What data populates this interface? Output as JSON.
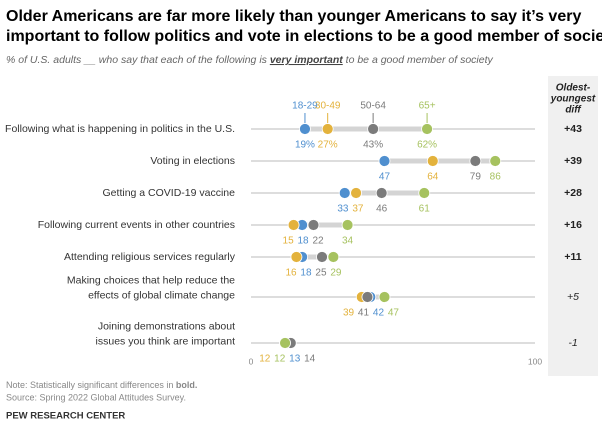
{
  "chart_data": {
    "type": "dot",
    "title": [
      "Older Americans are far more likely than younger Americans to say it’s very",
      "important to follow politics and vote in elections to be a good member of society"
    ],
    "subtitle_start": "% of U.S. adults __ who say that each of the following is ",
    "subtitle_emphasis": "very important",
    "subtitle_end": " to be a good member of society",
    "categories": [
      [
        "Following what is happening in politics in the U.S."
      ],
      [
        "Voting in elections"
      ],
      [
        "Getting a COVID-19 vaccine"
      ],
      [
        "Following current events in other countries"
      ],
      [
        "Attending religious services regularly"
      ],
      [
        "Making choices that help reduce the",
        "effects of global climate change"
      ],
      [
        "Joining demonstrations about",
        "issues you think are important"
      ]
    ],
    "series": [
      {
        "name": "18-29",
        "color": "#4f8fcf",
        "values": [
          19,
          47,
          33,
          18,
          18,
          42,
          13
        ],
        "value_labels": [
          "19%",
          "47",
          "33",
          "18",
          "18",
          "42",
          "13"
        ]
      },
      {
        "name": "30-49",
        "color": "#e3b23c",
        "values": [
          27,
          64,
          37,
          15,
          16,
          39,
          12
        ],
        "value_labels": [
          "27%",
          "64",
          "37",
          "15",
          "16",
          "39",
          "12"
        ]
      },
      {
        "name": "50-64",
        "color": "#7b7b7b",
        "values": [
          43,
          79,
          46,
          22,
          25,
          41,
          14
        ],
        "value_labels": [
          "43%",
          "79",
          "46",
          "22",
          "25",
          "41",
          "14"
        ]
      },
      {
        "name": "65+",
        "color": "#a6c25f",
        "values": [
          62,
          86,
          61,
          34,
          29,
          47,
          12
        ],
        "value_labels": [
          "62%",
          "86",
          "61",
          "34",
          "29",
          "47",
          "12"
        ]
      }
    ],
    "diff_header": [
      "Oldest-",
      "youngest",
      "diff"
    ],
    "diff": [
      43,
      39,
      28,
      16,
      11,
      5,
      -1
    ],
    "diff_labels": [
      "+43",
      "+39",
      "+28",
      "+16",
      "+11",
      "+5",
      "-1"
    ],
    "significant": [
      true,
      true,
      true,
      true,
      true,
      false,
      false
    ],
    "xlim": [
      0,
      100
    ],
    "xticks": [
      0,
      100
    ],
    "note_start": "Note: Statistically significant differences in ",
    "note_bold": "bold.",
    "source": "Source: Spring 2022 Global Attitudes Survey.",
    "footer": "PEW RESEARCH CENTER"
  }
}
